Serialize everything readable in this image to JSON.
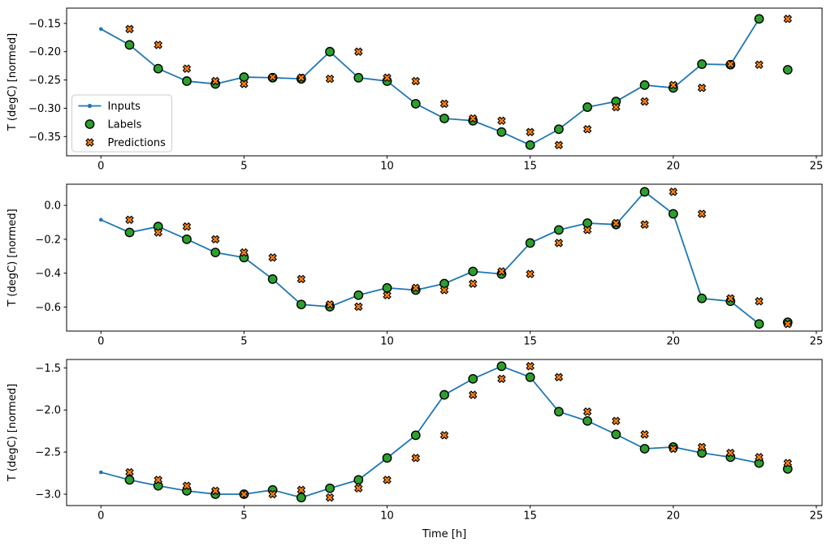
{
  "figure": {
    "background": "#ffffff",
    "xlabel": "Time [h]",
    "ylabel": "T (degC) [normed]"
  },
  "colors": {
    "inputs_line": "#1f77b4",
    "labels_marker": "#2ca02c",
    "predictions_marker": "#ff7f0e",
    "marker_edge": "#000000",
    "legend_border": "#cccccc",
    "legend_background": "#ffffff",
    "spine": "#000000",
    "text": "#000000"
  },
  "legend": {
    "items": [
      {
        "label": "Inputs",
        "swatch": "line-dot-icon"
      },
      {
        "label": "Labels",
        "swatch": "circle-icon"
      },
      {
        "label": "Predictions",
        "swatch": "x-cross-icon"
      }
    ]
  },
  "chart_data": [
    {
      "type": "line",
      "title": "",
      "xlabel": "",
      "ylabel": "T (degC) [normed]",
      "xlim": [
        -1.2,
        25.2
      ],
      "ylim": [
        -0.384,
        -0.123
      ],
      "xticks": [
        0,
        5,
        10,
        15,
        20,
        25
      ],
      "xtick_labels": [
        "0",
        "5",
        "10",
        "15",
        "20",
        "25"
      ],
      "yticks": [
        -0.15,
        -0.2,
        -0.25,
        -0.3,
        -0.35
      ],
      "ytick_labels": [
        "−0.15",
        "−0.20",
        "−0.25",
        "−0.30",
        "−0.35"
      ],
      "grid": false,
      "legend_position": "center-left",
      "show_legend": true,
      "series": [
        {
          "name": "Inputs",
          "style": "line-dot",
          "x": [
            0,
            1,
            2,
            3,
            4,
            5,
            6,
            7,
            8,
            9,
            10,
            11,
            12,
            13,
            14,
            15,
            16,
            17,
            18,
            19,
            20,
            21,
            22,
            23
          ],
          "y": [
            -0.16,
            -0.188,
            -0.23,
            -0.252,
            -0.257,
            -0.245,
            -0.246,
            -0.248,
            -0.2,
            -0.246,
            -0.252,
            -0.292,
            -0.318,
            -0.322,
            -0.342,
            -0.365,
            -0.337,
            -0.298,
            -0.288,
            -0.259,
            -0.264,
            -0.222,
            -0.223,
            -0.142
          ]
        },
        {
          "name": "Labels",
          "style": "scatter-circle",
          "x": [
            1,
            2,
            3,
            4,
            5,
            6,
            7,
            8,
            9,
            10,
            11,
            12,
            13,
            14,
            15,
            16,
            17,
            18,
            19,
            20,
            21,
            22,
            23,
            24
          ],
          "y": [
            -0.188,
            -0.23,
            -0.252,
            -0.257,
            -0.245,
            -0.246,
            -0.248,
            -0.2,
            -0.246,
            -0.252,
            -0.292,
            -0.318,
            -0.322,
            -0.342,
            -0.365,
            -0.337,
            -0.298,
            -0.288,
            -0.259,
            -0.264,
            -0.222,
            -0.223,
            -0.142,
            -0.232
          ]
        },
        {
          "name": "Predictions",
          "style": "scatter-x",
          "x": [
            1,
            2,
            3,
            4,
            5,
            6,
            7,
            8,
            9,
            10,
            11,
            12,
            13,
            14,
            15,
            16,
            17,
            18,
            19,
            20,
            21,
            22,
            23,
            24
          ],
          "y": [
            -0.16,
            -0.188,
            -0.23,
            -0.252,
            -0.257,
            -0.245,
            -0.246,
            -0.248,
            -0.2,
            -0.246,
            -0.252,
            -0.292,
            -0.318,
            -0.322,
            -0.342,
            -0.365,
            -0.337,
            -0.298,
            -0.288,
            -0.259,
            -0.264,
            -0.222,
            -0.223,
            -0.142
          ]
        }
      ]
    },
    {
      "type": "line",
      "title": "",
      "xlabel": "",
      "ylabel": "T (degC) [normed]",
      "xlim": [
        -1.2,
        25.2
      ],
      "ylim": [
        -0.742,
        0.125
      ],
      "xticks": [
        0,
        5,
        10,
        15,
        20,
        25
      ],
      "xtick_labels": [
        "0",
        "5",
        "10",
        "15",
        "20",
        "25"
      ],
      "yticks": [
        0.0,
        -0.2,
        -0.4,
        -0.6
      ],
      "ytick_labels": [
        "0.0",
        "−0.2",
        "−0.4",
        "−0.6"
      ],
      "grid": false,
      "show_legend": false,
      "series": [
        {
          "name": "Inputs",
          "style": "line-dot",
          "x": [
            0,
            1,
            2,
            3,
            4,
            5,
            6,
            7,
            8,
            9,
            10,
            11,
            12,
            13,
            14,
            15,
            16,
            17,
            18,
            19,
            20,
            21,
            22,
            23
          ],
          "y": [
            -0.085,
            -0.16,
            -0.125,
            -0.2,
            -0.278,
            -0.308,
            -0.435,
            -0.585,
            -0.598,
            -0.53,
            -0.487,
            -0.5,
            -0.462,
            -0.39,
            -0.405,
            -0.222,
            -0.145,
            -0.105,
            -0.113,
            0.08,
            -0.05,
            -0.549,
            -0.566,
            -0.7
          ]
        },
        {
          "name": "Labels",
          "style": "scatter-circle",
          "x": [
            1,
            2,
            3,
            4,
            5,
            6,
            7,
            8,
            9,
            10,
            11,
            12,
            13,
            14,
            15,
            16,
            17,
            18,
            19,
            20,
            21,
            22,
            23,
            24
          ],
          "y": [
            -0.16,
            -0.125,
            -0.2,
            -0.278,
            -0.308,
            -0.435,
            -0.585,
            -0.598,
            -0.53,
            -0.487,
            -0.5,
            -0.462,
            -0.39,
            -0.405,
            -0.222,
            -0.145,
            -0.105,
            -0.113,
            0.08,
            -0.05,
            -0.549,
            -0.566,
            -0.7,
            -0.69
          ]
        },
        {
          "name": "Predictions",
          "style": "scatter-x",
          "x": [
            1,
            2,
            3,
            4,
            5,
            6,
            7,
            8,
            9,
            10,
            11,
            12,
            13,
            14,
            15,
            16,
            17,
            18,
            19,
            20,
            21,
            22,
            23,
            24
          ],
          "y": [
            -0.085,
            -0.16,
            -0.125,
            -0.2,
            -0.278,
            -0.308,
            -0.435,
            -0.585,
            -0.598,
            -0.53,
            -0.487,
            -0.5,
            -0.462,
            -0.39,
            -0.405,
            -0.222,
            -0.145,
            -0.105,
            -0.113,
            0.08,
            -0.05,
            -0.549,
            -0.566,
            -0.7
          ]
        }
      ]
    },
    {
      "type": "line",
      "title": "",
      "xlabel": "Time [h]",
      "ylabel": "T (degC) [normed]",
      "xlim": [
        -1.2,
        25.2
      ],
      "ylim": [
        -3.135,
        -1.4
      ],
      "xticks": [
        0,
        5,
        10,
        15,
        20,
        25
      ],
      "xtick_labels": [
        "0",
        "5",
        "10",
        "15",
        "20",
        "25"
      ],
      "yticks": [
        -1.5,
        -2.0,
        -2.5,
        -3.0
      ],
      "ytick_labels": [
        "−1.5",
        "−2.0",
        "−2.5",
        "−3.0"
      ],
      "grid": false,
      "show_legend": false,
      "series": [
        {
          "name": "Inputs",
          "style": "line-dot",
          "x": [
            0,
            1,
            2,
            3,
            4,
            5,
            6,
            7,
            8,
            9,
            10,
            11,
            12,
            13,
            14,
            15,
            16,
            17,
            18,
            19,
            20,
            21,
            22,
            23
          ],
          "y": [
            -2.74,
            -2.83,
            -2.9,
            -2.96,
            -3.0,
            -3.0,
            -2.95,
            -3.04,
            -2.93,
            -2.83,
            -2.57,
            -2.3,
            -1.82,
            -1.63,
            -1.48,
            -1.61,
            -2.02,
            -2.13,
            -2.29,
            -2.46,
            -2.44,
            -2.51,
            -2.56,
            -2.63
          ]
        },
        {
          "name": "Labels",
          "style": "scatter-circle",
          "x": [
            1,
            2,
            3,
            4,
            5,
            6,
            7,
            8,
            9,
            10,
            11,
            12,
            13,
            14,
            15,
            16,
            17,
            18,
            19,
            20,
            21,
            22,
            23,
            24
          ],
          "y": [
            -2.83,
            -2.9,
            -2.96,
            -3.0,
            -3.0,
            -2.95,
            -3.04,
            -2.93,
            -2.83,
            -2.57,
            -2.3,
            -1.82,
            -1.63,
            -1.48,
            -1.61,
            -2.02,
            -2.13,
            -2.29,
            -2.46,
            -2.44,
            -2.51,
            -2.56,
            -2.63,
            -2.7
          ]
        },
        {
          "name": "Predictions",
          "style": "scatter-x",
          "x": [
            1,
            2,
            3,
            4,
            5,
            6,
            7,
            8,
            9,
            10,
            11,
            12,
            13,
            14,
            15,
            16,
            17,
            18,
            19,
            20,
            21,
            22,
            23,
            24
          ],
          "y": [
            -2.74,
            -2.83,
            -2.9,
            -2.96,
            -3.0,
            -3.0,
            -2.95,
            -3.04,
            -2.93,
            -2.83,
            -2.57,
            -2.3,
            -1.82,
            -1.63,
            -1.48,
            -1.61,
            -2.02,
            -2.13,
            -2.29,
            -2.46,
            -2.44,
            -2.51,
            -2.56,
            -2.63
          ]
        }
      ]
    }
  ]
}
